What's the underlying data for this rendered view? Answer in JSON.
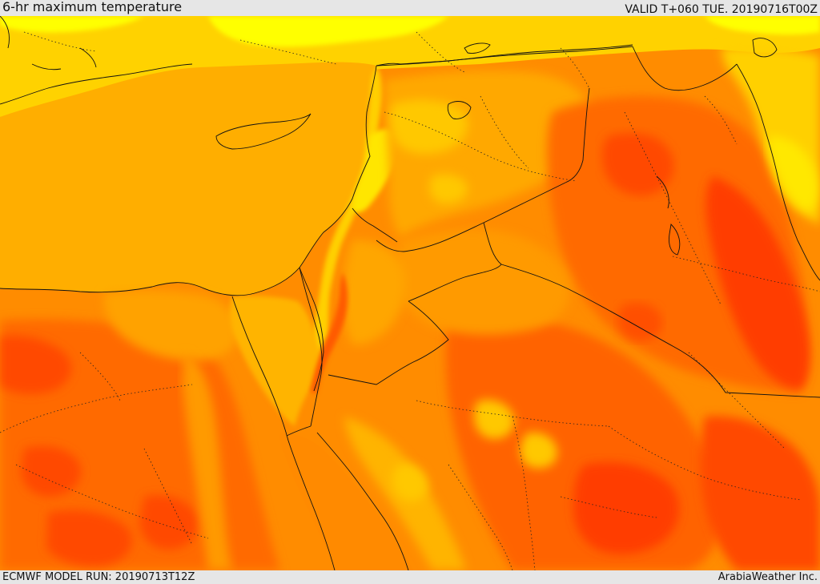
{
  "header": {
    "title": "6-hr maximum temperature",
    "valid": "VALID T+060 TUE. 20190716T00Z"
  },
  "footer": {
    "model_run": "ECMWF MODEL RUN: 20190713T12Z",
    "credit": "ArabiaWeather Inc."
  },
  "map": {
    "region": "Eastern Mediterranean and Middle East",
    "palette": {
      "yellow": "#ffff00",
      "light_yellow": "#ffd700",
      "light_orange": "#ffb000",
      "orange": "#ff8c00",
      "dark_orange": "#ff6a00",
      "red_orange": "#ff4500",
      "red": "#ff2a00"
    }
  }
}
